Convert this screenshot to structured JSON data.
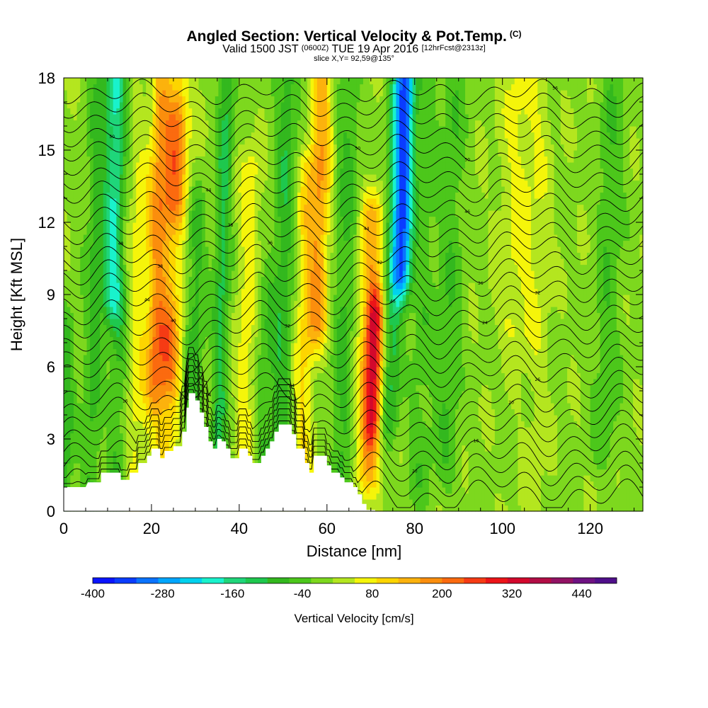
{
  "title": {
    "main": "Angled Section: Vertical Velocity & Pot.Temp.",
    "main_tag": "(C)",
    "valid_prefix": "Valid 1500 JST",
    "valid_utc": "(0600Z)",
    "valid_date": "TUE 19 Apr 2016",
    "forecast": "[12hrFcst@2313z]",
    "slice": "slice X,Y= 92,59@135°"
  },
  "colors": {
    "colorbar": [
      "#0a14ff",
      "#0a3cff",
      "#0a73ff",
      "#00a6ff",
      "#00d2ee",
      "#19f2cc",
      "#1fd67a",
      "#1ec84e",
      "#33b81e",
      "#4cc71b",
      "#7dd81e",
      "#b4e61f",
      "#f5f50a",
      "#fdd500",
      "#fcb20d",
      "#fb8e0d",
      "#fb6a0f",
      "#f63b14",
      "#ec1418",
      "#d3082c",
      "#b20d45",
      "#921264",
      "#6e1282",
      "#4f0f8a"
    ],
    "terrain": "#ffffff",
    "contour": "#000000"
  },
  "chart_data": {
    "type": "heatmap",
    "xlabel": "Distance [nm]",
    "ylabel": "Height [Kft MSL]",
    "xlim": [
      0,
      132
    ],
    "ylim": [
      0,
      18
    ],
    "xticks": [
      0,
      20,
      40,
      60,
      80,
      100,
      120
    ],
    "yticks": [
      0,
      3,
      6,
      9,
      12,
      15,
      18
    ],
    "colorbar": {
      "label": "Vertical Velocity [cm/s]",
      "ticks": [
        -400,
        -280,
        -160,
        -40,
        80,
        200,
        320,
        440
      ],
      "range": [
        -400,
        500
      ],
      "step": 40
    },
    "terrain_profile": [
      [
        0,
        1.0
      ],
      [
        5,
        1.0
      ],
      [
        5.5,
        1.2
      ],
      [
        8.5,
        1.2
      ],
      [
        8.5,
        1.6
      ],
      [
        13,
        1.6
      ],
      [
        13,
        1.3
      ],
      [
        15,
        1.3
      ],
      [
        15,
        1.6
      ],
      [
        17,
        1.6
      ],
      [
        17,
        2.0
      ],
      [
        19,
        2.0
      ],
      [
        19,
        2.3
      ],
      [
        20,
        2.3
      ],
      [
        20,
        2.6
      ],
      [
        22,
        2.6
      ],
      [
        22,
        2.2
      ],
      [
        23,
        2.2
      ],
      [
        23,
        2.5
      ],
      [
        25,
        2.5
      ],
      [
        25,
        2.7
      ],
      [
        27,
        2.7
      ],
      [
        27,
        3.3
      ],
      [
        28,
        3.3
      ],
      [
        28,
        4.3
      ],
      [
        28.5,
        4.3
      ],
      [
        28.5,
        4.9
      ],
      [
        30,
        4.9
      ],
      [
        30,
        4.6
      ],
      [
        31,
        4.6
      ],
      [
        31,
        4.1
      ],
      [
        32,
        4.1
      ],
      [
        32,
        3.5
      ],
      [
        33,
        3.5
      ],
      [
        33,
        2.9
      ],
      [
        34,
        2.9
      ],
      [
        34,
        2.6
      ],
      [
        35,
        2.6
      ],
      [
        35,
        3.0
      ],
      [
        36,
        3.0
      ],
      [
        36,
        2.9
      ],
      [
        37,
        2.9
      ],
      [
        37,
        2.6
      ],
      [
        38,
        2.6
      ],
      [
        38,
        2.2
      ],
      [
        40,
        2.2
      ],
      [
        40,
        2.6
      ],
      [
        42,
        2.6
      ],
      [
        42,
        2.3
      ],
      [
        43,
        2.3
      ],
      [
        43,
        2.0
      ],
      [
        45,
        2.0
      ],
      [
        45,
        2.3
      ],
      [
        46,
        2.3
      ],
      [
        46,
        2.6
      ],
      [
        47,
        2.6
      ],
      [
        47,
        2.9
      ],
      [
        48,
        2.9
      ],
      [
        48,
        3.3
      ],
      [
        49,
        3.3
      ],
      [
        49,
        3.6
      ],
      [
        52,
        3.6
      ],
      [
        52,
        3.2
      ],
      [
        53,
        3.2
      ],
      [
        53,
        2.6
      ],
      [
        55,
        2.6
      ],
      [
        55,
        2.0
      ],
      [
        56,
        2.0
      ],
      [
        56,
        1.6
      ],
      [
        57,
        1.6
      ],
      [
        57,
        2.3
      ],
      [
        60,
        2.3
      ],
      [
        60,
        1.9
      ],
      [
        61,
        1.9
      ],
      [
        61,
        1.6
      ],
      [
        63,
        1.6
      ],
      [
        63,
        1.4
      ],
      [
        64,
        1.4
      ],
      [
        64,
        1.2
      ],
      [
        66,
        1.2
      ],
      [
        66,
        1.0
      ],
      [
        67,
        1.0
      ],
      [
        67,
        0.7
      ],
      [
        68,
        0.7
      ],
      [
        68,
        0.3
      ],
      [
        69,
        0.3
      ],
      [
        69,
        0.05
      ],
      [
        71,
        0.05
      ],
      [
        71,
        0.0
      ]
    ],
    "velocity_field": {
      "background": 30,
      "bands": [
        {
          "x": 1,
          "w": 1.3,
          "amp": -100,
          "hs": [
            0,
            7
          ]
        },
        {
          "x": 7,
          "w": 1.6,
          "amp": -80,
          "hs": [
            0,
            18
          ]
        },
        {
          "x": 11,
          "w": 1.5,
          "amp": -190,
          "hs": [
            9,
            18
          ]
        },
        {
          "x": 13,
          "w": 1.6,
          "amp": -70,
          "hs": [
            1,
            9
          ]
        },
        {
          "x": 17,
          "w": 1.8,
          "amp": 70,
          "hs": [
            1,
            14
          ]
        },
        {
          "x": 21,
          "w": 1.4,
          "amp": 130,
          "hs": [
            5,
            18
          ]
        },
        {
          "x": 24,
          "w": 2.3,
          "amp": 120,
          "hs": [
            6,
            16
          ]
        },
        {
          "x": 24,
          "w": 2.0,
          "amp": 110,
          "hs": [
            3,
            7
          ]
        },
        {
          "x": 25,
          "w": 1.8,
          "amp": 110,
          "hs": [
            13,
            18
          ]
        },
        {
          "x": 30,
          "w": 1.6,
          "amp": -90,
          "hs": [
            3,
            12
          ]
        },
        {
          "x": 36,
          "w": 1.3,
          "amp": -120,
          "hs": [
            2,
            18
          ]
        },
        {
          "x": 42,
          "w": 1.8,
          "amp": 70,
          "hs": [
            3,
            14
          ]
        },
        {
          "x": 46,
          "w": 1.5,
          "amp": -60,
          "hs": [
            2,
            9
          ]
        },
        {
          "x": 50,
          "w": 1.8,
          "amp": -100,
          "hs": [
            3,
            18
          ]
        },
        {
          "x": 55,
          "w": 1.8,
          "amp": 90,
          "hs": [
            2,
            14
          ]
        },
        {
          "x": 58,
          "w": 1.7,
          "amp": 150,
          "hs": [
            8,
            18
          ]
        },
        {
          "x": 64,
          "w": 1.8,
          "amp": -80,
          "hs": [
            1,
            18
          ]
        },
        {
          "x": 70,
          "w": 1.9,
          "amp": 150,
          "hs": [
            2,
            12
          ]
        },
        {
          "x": 71,
          "w": 1.3,
          "amp": 230,
          "hs": [
            4,
            8
          ]
        },
        {
          "x": 75,
          "w": 1.4,
          "amp": -120,
          "hs": [
            4,
            18
          ]
        },
        {
          "x": 77,
          "w": 1.5,
          "amp": -320,
          "hs": [
            10,
            18
          ]
        },
        {
          "x": 82,
          "w": 2.0,
          "amp": -50,
          "hs": [
            1,
            18
          ]
        },
        {
          "x": 88,
          "w": 2.0,
          "amp": -60,
          "hs": [
            2,
            18
          ]
        },
        {
          "x": 103,
          "w": 3.0,
          "amp": 60,
          "hs": [
            8,
            18
          ]
        },
        {
          "x": 108,
          "w": 2.0,
          "amp": 30,
          "hs": [
            0,
            18
          ]
        },
        {
          "x": 124,
          "w": 2.2,
          "amp": -60,
          "hs": [
            3,
            18
          ]
        }
      ]
    },
    "isentropes": {
      "levels": 30,
      "base_height_kft": 0.6,
      "spacing_kft": 0.58,
      "labels": [
        {
          "x": 11,
          "level": 26,
          "text": "50"
        },
        {
          "x": 13,
          "level": 18,
          "text": "48"
        },
        {
          "x": 19,
          "level": 14,
          "text": "44"
        },
        {
          "x": 22,
          "level": 16,
          "text": "38"
        },
        {
          "x": 25,
          "level": 13,
          "text": "40"
        },
        {
          "x": 33,
          "level": 22,
          "text": "44"
        },
        {
          "x": 38,
          "level": 20,
          "text": "38"
        },
        {
          "x": 47,
          "level": 18,
          "text": "36"
        },
        {
          "x": 51,
          "level": 13,
          "text": "32"
        },
        {
          "x": 52,
          "level": 9,
          "text": "24"
        },
        {
          "x": 67,
          "level": 25,
          "text": "50"
        },
        {
          "x": 69,
          "level": 19,
          "text": "44"
        },
        {
          "x": 72,
          "level": 17,
          "text": "42"
        },
        {
          "x": 75,
          "level": 14,
          "text": "40"
        },
        {
          "x": 92,
          "level": 25,
          "text": "50"
        },
        {
          "x": 92,
          "level": 21,
          "text": "46"
        },
        {
          "x": 95,
          "level": 16,
          "text": "36"
        },
        {
          "x": 96,
          "level": 13,
          "text": "24"
        },
        {
          "x": 108,
          "level": 15,
          "text": "32"
        },
        {
          "x": 108,
          "level": 9,
          "text": "26"
        },
        {
          "x": 112,
          "level": 29,
          "text": "56"
        },
        {
          "x": 102,
          "level": 6,
          "text": "20"
        },
        {
          "x": 94,
          "level": 3,
          "text": "16"
        },
        {
          "x": 80,
          "level": 2,
          "text": "20"
        },
        {
          "x": 14,
          "level": 6,
          "text": "16"
        },
        {
          "x": 33,
          "level": 7,
          "text": "24"
        }
      ]
    }
  }
}
